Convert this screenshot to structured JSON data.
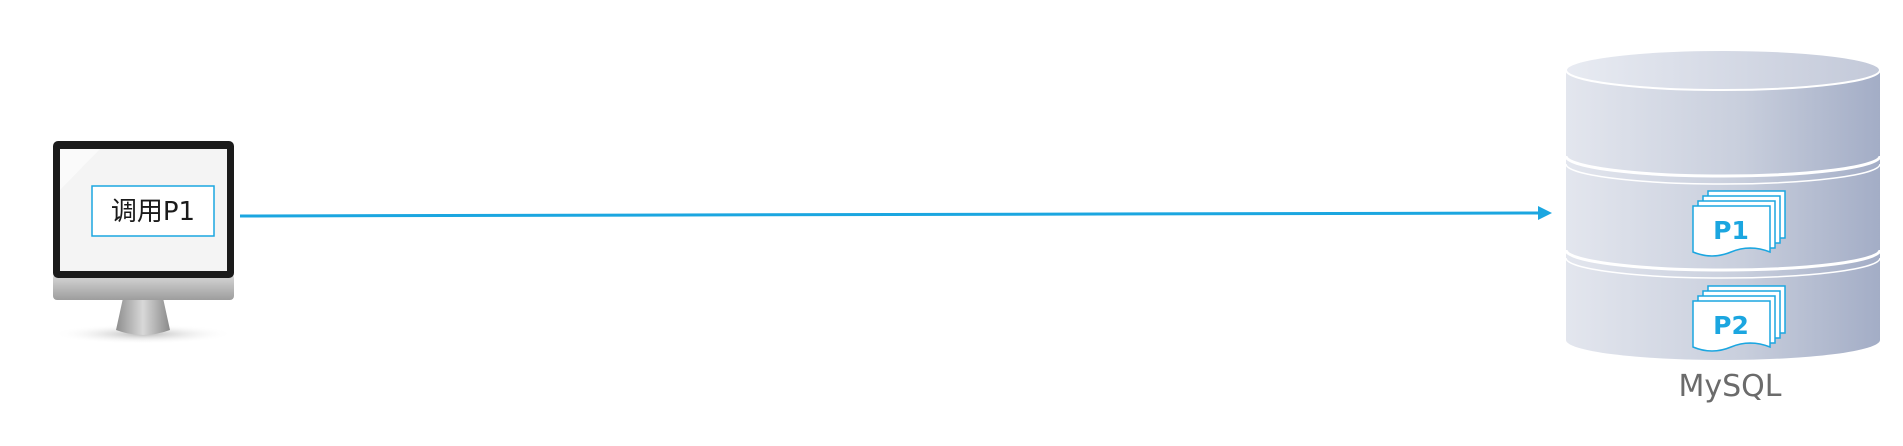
{
  "client": {
    "screen_label": "调用P1",
    "icon": "desktop-monitor-icon"
  },
  "call_arrow": {
    "color": "#1ba6e0"
  },
  "database": {
    "label": "MySQL",
    "icon": "database-cylinder-icon",
    "procedures": [
      {
        "label": "P1",
        "icon": "document-stack-icon"
      },
      {
        "label": "P2",
        "icon": "document-stack-icon"
      }
    ]
  },
  "colors": {
    "accent": "#1ba6e0",
    "db_fill_light": "#dde1ea",
    "db_fill_dark": "#a6b0c8"
  }
}
